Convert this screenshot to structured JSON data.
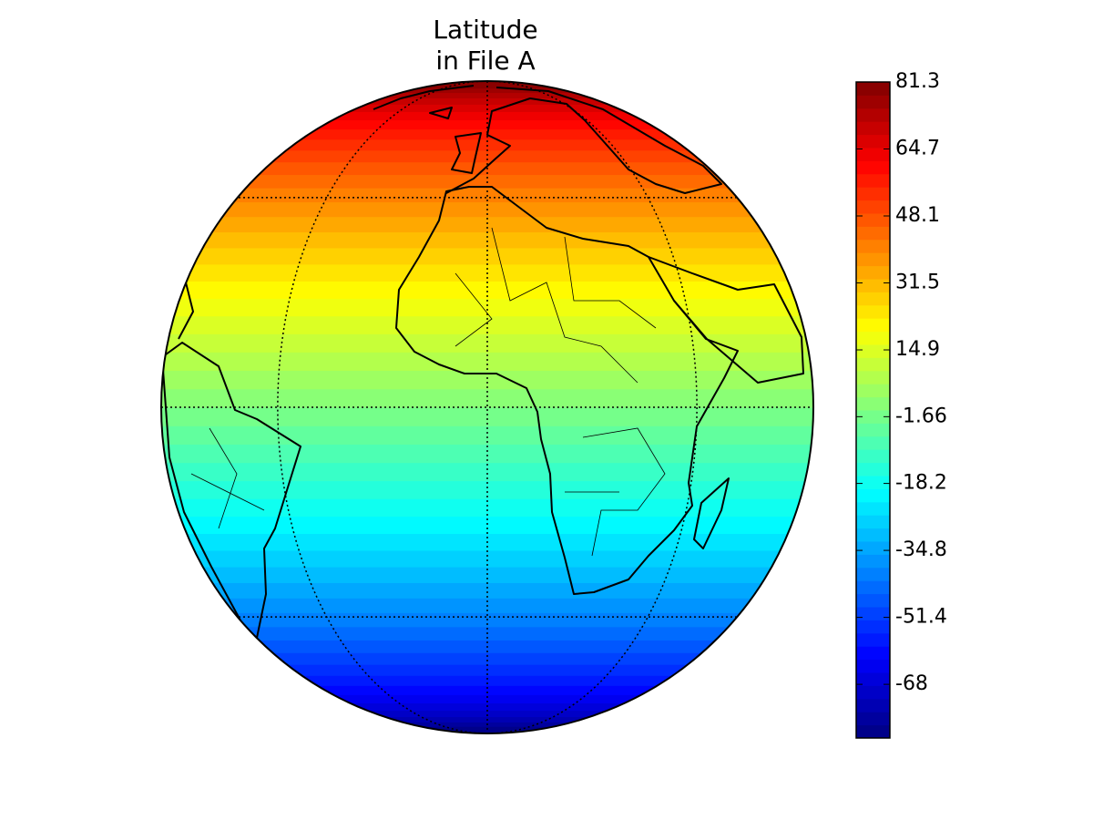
{
  "chart_data": {
    "type": "map",
    "projection": "orthographic",
    "title": [
      "Latitude",
      "in File A"
    ],
    "colormap": "jet",
    "colorbar_lim": [
      -81.3,
      81.3
    ],
    "colorbar_ticks": [
      -68,
      -51.4,
      -34.8,
      -18.2,
      -1.66,
      14.9,
      31.5,
      48.1,
      64.7,
      81.3
    ]
  }
}
